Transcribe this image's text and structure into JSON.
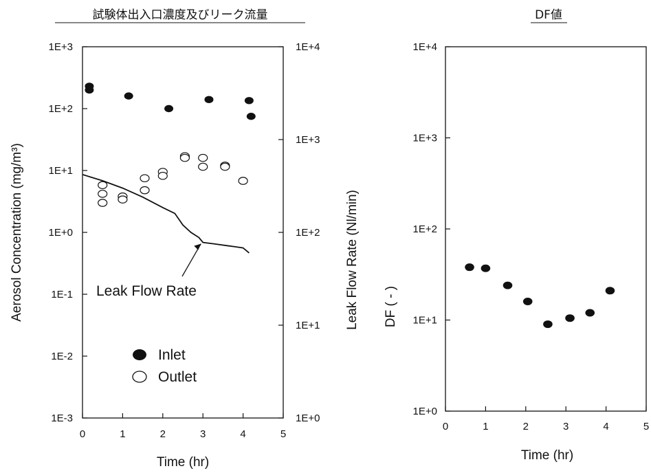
{
  "chart_data": [
    {
      "type": "scatter",
      "title": "試験体出入口濃度及びリーク流量",
      "xlabel": "Time (hr)",
      "ylabel": "Aerosol Concentration (mg/m³)",
      "y2label": "Leak Flow Rate (Nl/min)",
      "xlim": [
        0,
        5
      ],
      "ylim": [
        0.001,
        1000
      ],
      "y2lim": [
        1,
        10000
      ],
      "yscale": "log",
      "y2scale": "log",
      "x_ticks": [
        "0",
        "1",
        "2",
        "3",
        "4",
        "5"
      ],
      "y_ticks": [
        "1E-3",
        "1E-2",
        "1E-1",
        "1E+0",
        "1E+1",
        "1E+2",
        "1E+3"
      ],
      "y2_ticks": [
        "1E+0",
        "1E+1",
        "1E+2",
        "1E+3",
        "1E+4"
      ],
      "grid": false,
      "legend": "bottom-left",
      "series": [
        {
          "name": "Inlet",
          "marker": "filled-circle",
          "x": [
            0.17,
            0.17,
            1.15,
            2.15,
            3.15,
            4.15,
            4.2
          ],
          "y": [
            230,
            200,
            160,
            100,
            140,
            135,
            75
          ]
        },
        {
          "name": "Outlet",
          "marker": "open-circle",
          "x": [
            0.5,
            0.5,
            0.5,
            1.0,
            1.0,
            1.55,
            1.55,
            2.0,
            2.0,
            2.55,
            2.55,
            3.0,
            3.0,
            3.55,
            3.55,
            4.0
          ],
          "y": [
            5.8,
            4.2,
            3.0,
            3.8,
            3.4,
            7.5,
            4.8,
            9.5,
            8.2,
            17,
            16,
            16,
            11.5,
            12,
            11.5,
            6.8
          ]
        },
        {
          "name": "Leak Flow Rate",
          "axis": "y2",
          "style": "line",
          "x": [
            0,
            0.5,
            1.0,
            1.5,
            2.0,
            2.3,
            2.5,
            2.7,
            2.9,
            3.0,
            3.3,
            3.6,
            3.8,
            4.0,
            4.15
          ],
          "y": [
            420,
            360,
            300,
            240,
            185,
            160,
            120,
            100,
            88,
            78,
            75,
            72,
            70,
            68,
            60
          ]
        }
      ],
      "annotations": [
        {
          "text": "Leak Flow Rate",
          "arrow_to_x": 2.95,
          "arrow_to_y2": 78
        }
      ]
    },
    {
      "type": "scatter",
      "title": "DF値",
      "xlabel": "Time (hr)",
      "ylabel": "DF ( - )",
      "xlim": [
        0,
        5
      ],
      "ylim": [
        1,
        10000
      ],
      "yscale": "log",
      "x_ticks": [
        "0",
        "1",
        "2",
        "3",
        "4",
        "5"
      ],
      "y_ticks": [
        "1E+0",
        "1E+1",
        "1E+2",
        "1E+3",
        "1E+4"
      ],
      "grid": false,
      "series": [
        {
          "marker": "filled-circle",
          "x": [
            0.6,
            1.0,
            1.55,
            2.05,
            2.55,
            3.1,
            3.6,
            4.1
          ],
          "y": [
            38,
            37,
            24,
            16,
            9,
            10.5,
            12,
            21
          ]
        }
      ]
    }
  ]
}
